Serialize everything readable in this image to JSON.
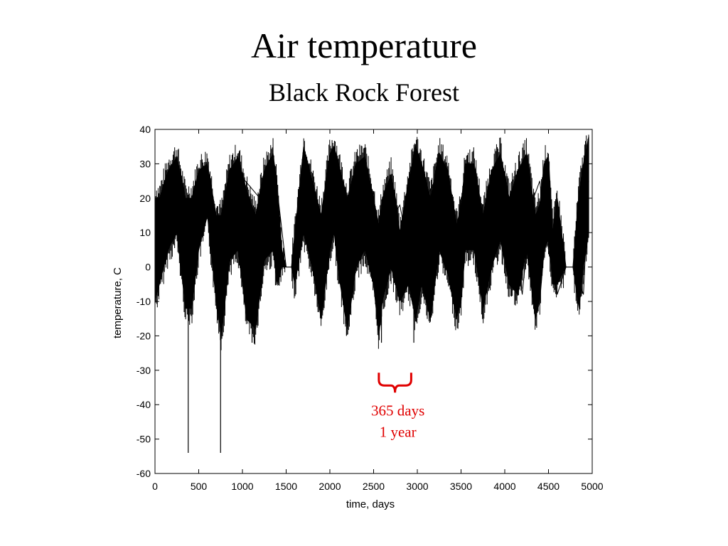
{
  "slide": {
    "title": "Air temperature",
    "subtitle": "Black Rock Forest"
  },
  "chart_data": {
    "type": "line",
    "title": "Air temperature",
    "subtitle": "Black Rock Forest",
    "xlabel": "time, days",
    "ylabel": "temperature, C",
    "xlim": [
      0,
      5000
    ],
    "ylim": [
      -60,
      40
    ],
    "xticks": [
      0,
      500,
      1000,
      1500,
      2000,
      2500,
      3000,
      3500,
      4000,
      4500,
      5000
    ],
    "yticks": [
      40,
      30,
      20,
      10,
      0,
      -10,
      -20,
      -30,
      -40,
      -50,
      -60
    ],
    "grid": false,
    "line_color": "#000000",
    "series": [
      {
        "x": [
          0,
          200,
          400,
          600,
          800,
          1000,
          1200,
          1300,
          1400,
          1500,
          1560,
          1600,
          1750,
          1950,
          2050,
          2350,
          2500,
          2600,
          2700,
          2800,
          2900,
          3000,
          3100,
          3200,
          3300,
          3400,
          3500,
          3600,
          3700,
          3800,
          3900,
          4000,
          4100,
          4200,
          4300,
          4400,
          4500,
          4600,
          4700,
          4800,
          4900,
          4960
        ],
        "y": [
          2,
          22,
          -5,
          25,
          -8,
          26,
          20,
          5,
          22,
          0,
          0,
          0,
          26,
          5,
          28,
          2,
          22,
          -8,
          14,
          18,
          5,
          -8,
          20,
          25,
          8,
          -5,
          20,
          26,
          12,
          -8,
          20,
          25,
          10,
          -8,
          18,
          25,
          5,
          -8,
          0,
          0,
          -8,
          25
        ]
      }
    ],
    "envelope": {
      "x": [
        0,
        50,
        150,
        250,
        350,
        420,
        500,
        600,
        700,
        760,
        850,
        950,
        1050,
        1150,
        1250,
        1350,
        1400,
        1450,
        1500,
        1560,
        1600,
        1700,
        1800,
        1900,
        2000,
        2050,
        2100,
        2200,
        2300,
        2400,
        2500,
        2560,
        2600,
        2700,
        2750,
        2800,
        2900,
        2980,
        3050,
        3150,
        3250,
        3350,
        3450,
        3500,
        3550,
        3650,
        3750,
        3850,
        3950,
        4050,
        4150,
        4250,
        4350,
        4400,
        4450,
        4500,
        4550,
        4600,
        4700,
        4780,
        4850,
        4900,
        4960
      ],
      "upper": [
        20,
        20,
        28,
        32,
        20,
        20,
        28,
        30,
        15,
        15,
        28,
        32,
        22,
        15,
        28,
        33,
        23,
        5,
        0,
        0,
        10,
        35,
        25,
        15,
        33,
        35,
        30,
        20,
        30,
        32,
        20,
        12,
        20,
        27,
        20,
        10,
        25,
        35,
        30,
        20,
        33,
        28,
        12,
        18,
        30,
        30,
        15,
        28,
        33,
        20,
        28,
        33,
        15,
        18,
        30,
        32,
        10,
        20,
        0,
        0,
        22,
        30,
        38
      ],
      "lower": [
        -10,
        -5,
        5,
        10,
        -12,
        -12,
        5,
        15,
        -10,
        -20,
        2,
        5,
        -15,
        -18,
        2,
        5,
        -5,
        0,
        0,
        0,
        -5,
        10,
        0,
        -15,
        5,
        10,
        -2,
        -18,
        0,
        5,
        -5,
        -20,
        -10,
        0,
        -5,
        -10,
        -5,
        -15,
        -5,
        -15,
        5,
        -2,
        -15,
        -10,
        5,
        5,
        -12,
        0,
        8,
        -5,
        -8,
        5,
        -15,
        -10,
        5,
        8,
        -5,
        -5,
        0,
        0,
        -12,
        0,
        10
      ]
    },
    "spikes": [
      {
        "x": 380,
        "y": -54
      },
      {
        "x": 750,
        "y": -54
      },
      {
        "x": 1110,
        "y": -22
      },
      {
        "x": 2190,
        "y": -20
      },
      {
        "x": 2590,
        "y": -22
      },
      {
        "x": 2960,
        "y": -22
      }
    ],
    "annotation": {
      "line1": "365 days",
      "line2": "1 year",
      "color": "#e00000",
      "x_from": 2560,
      "x_to": 2930,
      "y": -27
    }
  }
}
